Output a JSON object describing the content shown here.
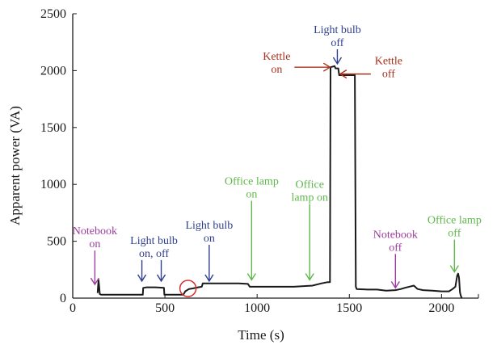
{
  "chart_data": {
    "type": "line",
    "title": "",
    "xlabel": "Time (s)",
    "ylabel": "Apparent power (VA)",
    "xlim": [
      0,
      2200
    ],
    "ylim": [
      0,
      2500
    ],
    "xticks": [
      0,
      500,
      1000,
      1500,
      2000
    ],
    "yticks": [
      0,
      500,
      1000,
      1500,
      2000,
      2500
    ],
    "grid": false,
    "series": [
      {
        "color": "#1a1a1a",
        "x": [
          135,
          140,
          143,
          147,
          155,
          200,
          300,
          380,
          382,
          400,
          450,
          495,
          497,
          520,
          560,
          600,
          610,
          630,
          650,
          680,
          700,
          705,
          720,
          750,
          800,
          900,
          950,
          960,
          1000,
          1100,
          1200,
          1300,
          1350,
          1380,
          1395,
          1398,
          1420,
          1425,
          1440,
          1445,
          1450,
          1500,
          1530,
          1535,
          1540,
          1600,
          1650,
          1700,
          1750,
          1780,
          1800,
          1850,
          1870,
          1900,
          1950,
          2000,
          2040,
          2060,
          2075,
          2085,
          2090,
          2095,
          2100,
          2105,
          2110
        ],
        "y": [
          45,
          160,
          110,
          35,
          30,
          30,
          30,
          30,
          90,
          95,
          95,
          90,
          30,
          30,
          30,
          30,
          60,
          80,
          85,
          95,
          100,
          130,
          130,
          130,
          130,
          130,
          125,
          100,
          100,
          100,
          100,
          110,
          130,
          140,
          140,
          2030,
          2040,
          2020,
          2020,
          1960,
          1960,
          1960,
          1960,
          100,
          80,
          75,
          75,
          65,
          70,
          80,
          90,
          110,
          80,
          70,
          65,
          60,
          60,
          80,
          100,
          200,
          215,
          180,
          50,
          20,
          0
        ]
      }
    ],
    "highlight_circle": {
      "x": 625,
      "y": 85
    },
    "annotations": [
      {
        "lines": [
          "Notebook",
          "on"
        ],
        "color": "#9b3d9c",
        "arrow": "down",
        "x": 120,
        "y": 120
      },
      {
        "lines": [
          "Light bulb",
          "on, off"
        ],
        "color": "#2f3f8f",
        "arrow": "down-pair",
        "x": [
          375,
          480
        ],
        "y": 150
      },
      {
        "lines": [
          "Light bulb",
          "on"
        ],
        "color": "#2f3f8f",
        "arrow": "down",
        "x": 740,
        "y": 150
      },
      {
        "lines": [
          "Office lamp",
          "on"
        ],
        "color": "#5fb84b",
        "arrow": "down",
        "x": 970,
        "y": 160
      },
      {
        "lines": [
          "Office",
          "lamp on"
        ],
        "color": "#5fb84b",
        "arrow": "down",
        "x": 1285,
        "y": 160
      },
      {
        "lines": [
          "Kettle",
          "on"
        ],
        "color": "#a8321f",
        "arrow": "right",
        "x": 1395,
        "y": 2030
      },
      {
        "lines": [
          "Light bulb",
          "off"
        ],
        "color": "#2f3f8f",
        "arrow": "down",
        "x": 1435,
        "y": 2060
      },
      {
        "lines": [
          "Kettle",
          "off"
        ],
        "color": "#a8321f",
        "arrow": "left",
        "x": 1450,
        "y": 1970
      },
      {
        "lines": [
          "Notebook",
          "off"
        ],
        "color": "#9b3d9c",
        "arrow": "down",
        "x": 1750,
        "y": 90
      },
      {
        "lines": [
          "Office lamp",
          "off"
        ],
        "color": "#5fb84b",
        "arrow": "down",
        "x": 2070,
        "y": 230
      }
    ]
  }
}
